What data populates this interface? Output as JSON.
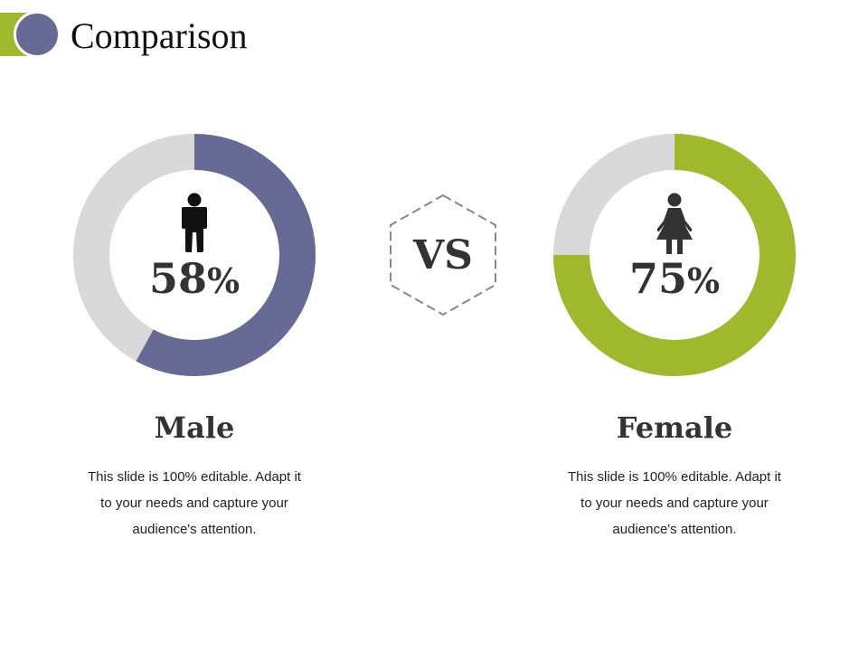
{
  "title": "Comparison",
  "colors": {
    "male": "#666a95",
    "female": "#a0b82b",
    "track": "#d9d9d9",
    "green_accent": "#a0b82b"
  },
  "vs": "VS",
  "chart_data": [
    {
      "type": "pie",
      "category": "Male",
      "value": 58,
      "display": "58",
      "unit": "%",
      "icon": "male-icon",
      "color": "#666a95"
    },
    {
      "type": "pie",
      "category": "Female",
      "value": 75,
      "display": "75",
      "unit": "%",
      "icon": "female-icon",
      "color": "#a0b82b"
    }
  ],
  "male": {
    "label": "Male",
    "description": "This slide is 100% editable. Adapt it to your needs and capture your audience's attention."
  },
  "female": {
    "label": "Female",
    "description": "This slide is 100% editable. Adapt it to your needs and capture your audience's attention."
  }
}
